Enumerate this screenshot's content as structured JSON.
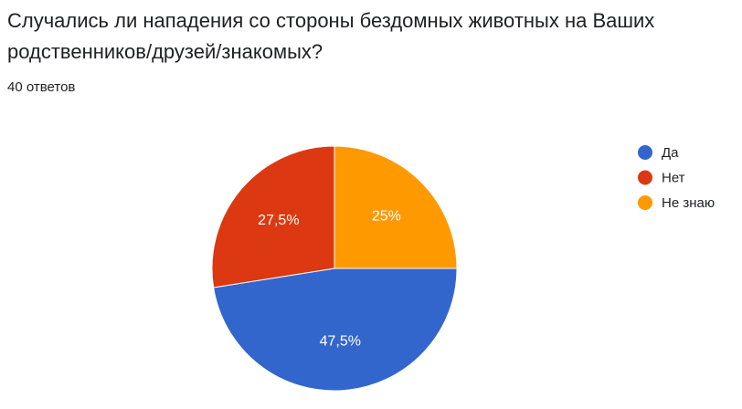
{
  "chart_data": {
    "type": "pie",
    "title": "Случались ли нападения со стороны бездомных животных на Ваших родственников/друзей/знакомых?",
    "subtitle": "40 ответов",
    "categories": [
      "Да",
      "Нет",
      "Не знаю"
    ],
    "values": [
      47.5,
      27.5,
      25
    ],
    "value_labels": [
      "47,5%",
      "27,5%",
      "25%"
    ],
    "colors": [
      "#3366cc",
      "#dc3912",
      "#ff9900"
    ],
    "legend": "right"
  }
}
